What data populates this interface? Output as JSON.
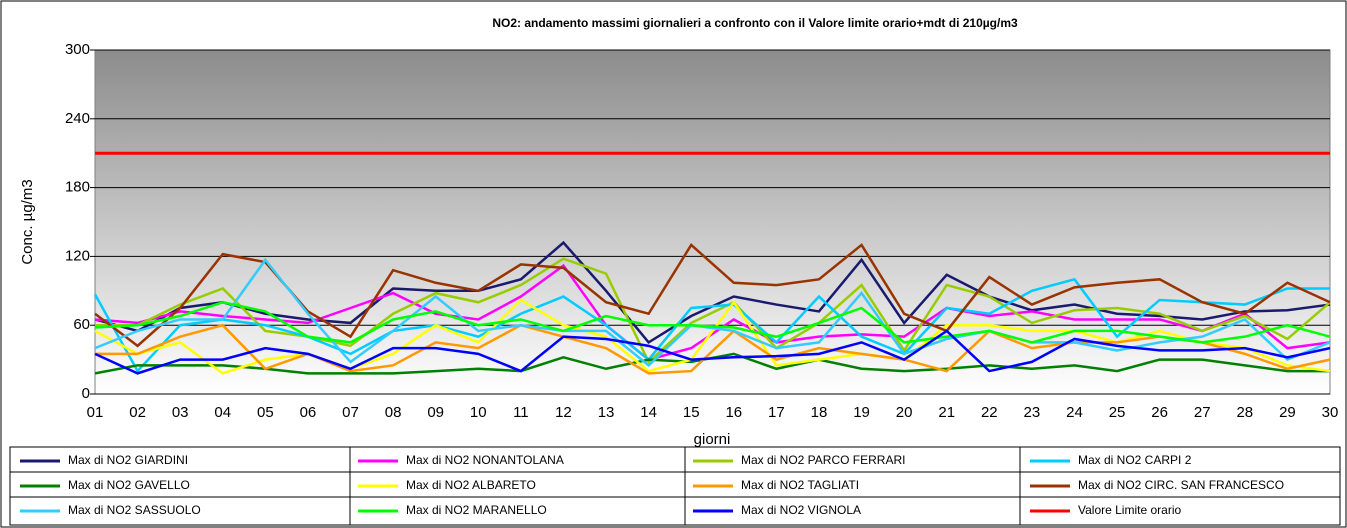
{
  "chart_data": {
    "type": "line",
    "title": "NO2: andamento massimi giornalieri a confronto con il Valore limite orario+mdt di 210µg/m3",
    "y_label": "Conc. µg/m3",
    "x_label": "giorni",
    "categories": [
      "01",
      "02",
      "03",
      "04",
      "05",
      "06",
      "07",
      "08",
      "09",
      "10",
      "11",
      "12",
      "13",
      "14",
      "15",
      "16",
      "17",
      "18",
      "19",
      "20",
      "21",
      "22",
      "23",
      "24",
      "25",
      "26",
      "27",
      "28",
      "29",
      "30"
    ],
    "ylim": [
      0,
      300
    ],
    "yticks": [
      0,
      60,
      120,
      180,
      240,
      300
    ],
    "grid": true,
    "legend": "bottom",
    "series": [
      {
        "name": "Max di NO2  GIARDINI",
        "color": "#1a1a6e",
        "values": [
          65,
          55,
          75,
          80,
          70,
          65,
          62,
          92,
          90,
          90,
          100,
          132,
          90,
          45,
          68,
          85,
          78,
          72,
          117,
          62,
          104,
          85,
          73,
          78,
          70,
          68,
          65,
          72,
          73,
          78
        ]
      },
      {
        "name": "Max di NO2  NONANTOLANA",
        "color": "#ff00ff",
        "values": [
          65,
          62,
          72,
          68,
          65,
          62,
          75,
          88,
          70,
          65,
          85,
          112,
          60,
          30,
          40,
          65,
          45,
          50,
          52,
          50,
          75,
          68,
          72,
          65,
          65,
          65,
          55,
          70,
          40,
          45
        ]
      },
      {
        "name": "Max di NO2  PARCO FERRARI",
        "color": "#99cc00",
        "values": [
          60,
          60,
          78,
          92,
          55,
          50,
          42,
          70,
          88,
          80,
          95,
          118,
          105,
          28,
          62,
          80,
          40,
          62,
          95,
          38,
          95,
          85,
          62,
          73,
          75,
          70,
          55,
          68,
          48,
          80
        ]
      },
      {
        "name": "Max di NO2 CARPI 2",
        "color": "#00ccff",
        "values": [
          87,
          20,
          60,
          65,
          60,
          50,
          35,
          55,
          60,
          50,
          70,
          85,
          60,
          30,
          75,
          78,
          45,
          85,
          50,
          35,
          75,
          70,
          90,
          100,
          50,
          82,
          80,
          78,
          92,
          92
        ]
      },
      {
        "name": "Max di NO2  GAVELLO",
        "color": "#008000",
        "values": [
          18,
          25,
          25,
          25,
          22,
          18,
          18,
          18,
          20,
          22,
          20,
          32,
          22,
          30,
          28,
          35,
          22,
          30,
          22,
          20,
          22,
          25,
          22,
          25,
          20,
          30,
          30,
          25,
          20,
          20
        ]
      },
      {
        "name": "Max di NO2  ALBARETO",
        "color": "#ffff00",
        "values": [
          55,
          35,
          45,
          18,
          30,
          35,
          22,
          35,
          60,
          45,
          82,
          60,
          50,
          20,
          30,
          80,
          25,
          30,
          35,
          30,
          60,
          60,
          55,
          55,
          45,
          55,
          45,
          40,
          25,
          20
        ]
      },
      {
        "name": "Max di NO2  TAGLIATI",
        "color": "#ff9900",
        "values": [
          35,
          35,
          50,
          60,
          22,
          35,
          20,
          25,
          45,
          40,
          60,
          50,
          40,
          18,
          20,
          55,
          30,
          40,
          35,
          30,
          20,
          55,
          40,
          45,
          45,
          50,
          45,
          35,
          22,
          30
        ]
      },
      {
        "name": "Max di NO2 CIRC. SAN FRANCESCO",
        "color": "#993300",
        "values": [
          70,
          42,
          75,
          122,
          115,
          72,
          50,
          108,
          97,
          90,
          113,
          110,
          80,
          70,
          130,
          97,
          95,
          100,
          130,
          70,
          55,
          102,
          78,
          93,
          97,
          100,
          80,
          70,
          97,
          80
        ]
      },
      {
        "name": "Max di NO2  SASSUOLO",
        "color": "#33ccff",
        "values": [
          40,
          55,
          65,
          65,
          117,
          70,
          28,
          55,
          85,
          55,
          60,
          55,
          55,
          25,
          60,
          55,
          40,
          45,
          88,
          35,
          48,
          55,
          45,
          45,
          38,
          45,
          50,
          65,
          30,
          45
        ]
      },
      {
        "name": "Max di NO2  MARANELLO",
        "color": "#00ff00",
        "values": [
          58,
          60,
          68,
          80,
          72,
          50,
          45,
          65,
          72,
          60,
          65,
          55,
          68,
          60,
          60,
          58,
          50,
          62,
          75,
          45,
          50,
          55,
          45,
          55,
          55,
          50,
          45,
          50,
          60,
          50
        ]
      },
      {
        "name": "Max di NO2  VIGNOLA",
        "color": "#0000ff",
        "values": [
          35,
          18,
          30,
          30,
          40,
          35,
          22,
          40,
          40,
          35,
          20,
          50,
          48,
          42,
          30,
          32,
          33,
          35,
          45,
          30,
          55,
          20,
          28,
          48,
          42,
          38,
          38,
          40,
          32,
          40
        ]
      },
      {
        "name": "Valore Limite orario",
        "color": "#ff0000",
        "values": [
          210,
          210,
          210,
          210,
          210,
          210,
          210,
          210,
          210,
          210,
          210,
          210,
          210,
          210,
          210,
          210,
          210,
          210,
          210,
          210,
          210,
          210,
          210,
          210,
          210,
          210,
          210,
          210,
          210,
          210
        ]
      }
    ]
  }
}
